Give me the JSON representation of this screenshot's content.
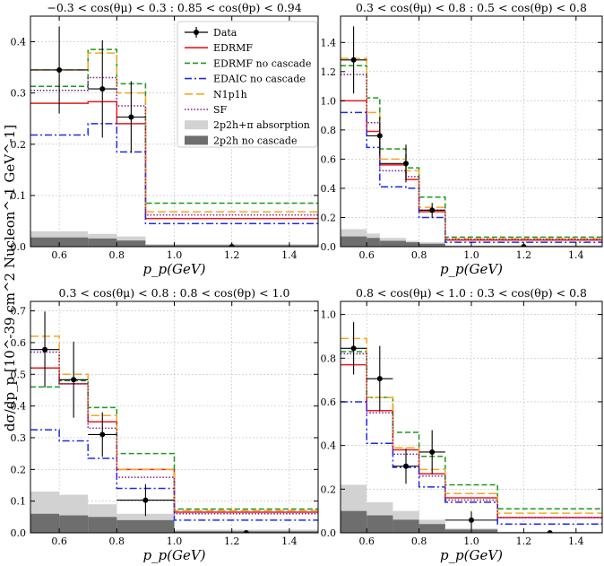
{
  "figure": {
    "ylabel": "dσ/dp_p [10^-39 cm^2 Nucleon^-1 GeV^-1]",
    "colors": {
      "data": "#000000",
      "EDRMF": "#e8191b",
      "EDRMF_nc": "#199a19",
      "EDAIC_nc": "#1f2be6",
      "N1p1h": "#f5a623",
      "SF": "#7a1a8c",
      "abs": "#d2d2d2",
      "noc": "#6e6e6e"
    }
  },
  "legend": {
    "entries": [
      {
        "key": "data",
        "label": "Data"
      },
      {
        "key": "EDRMF",
        "label": "EDRMF"
      },
      {
        "key": "EDRMF_nc",
        "label": "EDRMF no cascade"
      },
      {
        "key": "EDAIC_nc",
        "label": "EDAIC no cascade"
      },
      {
        "key": "N1p1h",
        "label": "N1p1h"
      },
      {
        "key": "SF",
        "label": "SF"
      },
      {
        "key": "abs",
        "label": "2p2h+π absorption"
      },
      {
        "key": "noc",
        "label": "2p2h no cascade"
      }
    ]
  },
  "chart_data": [
    {
      "type": "histogram",
      "title": "−0.3 < cos(θμ) < 0.3 : 0.85 < cos(θp) < 0.94",
      "xlabel": "p_p(GeV)",
      "xlim": [
        0.5,
        1.5
      ],
      "ylim": [
        0,
        0.45
      ],
      "xticks": [
        0.6,
        0.8,
        1.0,
        1.2,
        1.4
      ],
      "yticks": [
        0,
        0.1,
        0.2,
        0.3,
        0.4
      ],
      "tick_labels_x": [
        "0.6",
        "0.8",
        "1.0",
        "1.2",
        "1.4"
      ],
      "tick_labels_y": [
        "0.0",
        "0.1",
        "0.2",
        "0.3",
        "0.4"
      ],
      "edges": [
        0.5,
        0.7,
        0.8,
        0.9,
        1.5
      ],
      "series": [
        {
          "key": "EDRMF",
          "values": [
            0.28,
            0.283,
            0.24,
            0.055
          ]
        },
        {
          "key": "EDRMF_nc",
          "values": [
            0.313,
            0.385,
            0.318,
            0.085
          ]
        },
        {
          "key": "EDAIC_nc",
          "values": [
            0.218,
            0.24,
            0.185,
            0.045
          ]
        },
        {
          "key": "N1p1h",
          "values": [
            0.345,
            0.378,
            0.3,
            0.068
          ]
        },
        {
          "key": "SF",
          "values": [
            0.305,
            0.33,
            0.275,
            0.062
          ]
        }
      ],
      "bands": [
        {
          "key": "abs",
          "values": [
            0.03,
            0.025,
            0.02,
            0.005
          ]
        },
        {
          "key": "noc",
          "values": [
            0.018,
            0.016,
            0.012,
            0.003
          ]
        }
      ],
      "data_points": [
        {
          "x": 0.6,
          "y": 0.345,
          "err": 0.085
        },
        {
          "x": 0.75,
          "y": 0.308,
          "err": 0.095
        },
        {
          "x": 0.85,
          "y": 0.253,
          "err": 0.07
        },
        {
          "x": 1.2,
          "y": 0.0,
          "err": 0.003
        }
      ]
    },
    {
      "type": "histogram",
      "title": "0.3 < cos(θμ) < 0.8 : 0.5 < cos(θp) < 0.8",
      "xlabel": "p_p(GeV)",
      "xlim": [
        0.5,
        1.5
      ],
      "ylim": [
        0,
        1.58
      ],
      "xticks": [
        0.6,
        0.8,
        1.0,
        1.2,
        1.4
      ],
      "yticks": [
        0,
        0.2,
        0.4,
        0.6,
        0.8,
        1.0,
        1.2,
        1.4
      ],
      "tick_labels_x": [
        "0.6",
        "0.8",
        "1.0",
        "1.2",
        "1.4"
      ],
      "tick_labels_y": [
        "0.0",
        "0.2",
        "0.4",
        "0.6",
        "0.8",
        "1.0",
        "1.2",
        "1.4"
      ],
      "edges": [
        0.5,
        0.6,
        0.65,
        0.75,
        0.8,
        0.9,
        1.5
      ],
      "series": [
        {
          "key": "EDRMF",
          "values": [
            1.0,
            0.79,
            0.56,
            0.46,
            0.24,
            0.045
          ]
        },
        {
          "key": "EDRMF_nc",
          "values": [
            1.24,
            1.02,
            0.67,
            0.54,
            0.34,
            0.065
          ]
        },
        {
          "key": "EDAIC_nc",
          "values": [
            0.92,
            0.68,
            0.41,
            0.4,
            0.2,
            0.03
          ]
        },
        {
          "key": "N1p1h",
          "values": [
            1.29,
            0.92,
            0.6,
            0.52,
            0.27,
            0.055
          ]
        },
        {
          "key": "SF",
          "values": [
            1.18,
            0.85,
            0.52,
            0.48,
            0.25,
            0.05
          ]
        }
      ],
      "bands": [
        {
          "key": "abs",
          "values": [
            0.12,
            0.09,
            0.06,
            0.04,
            0.03,
            0.01
          ]
        },
        {
          "key": "noc",
          "values": [
            0.07,
            0.06,
            0.04,
            0.03,
            0.02,
            0.005
          ]
        }
      ],
      "data_points": [
        {
          "x": 0.55,
          "y": 1.28,
          "err": 0.23
        },
        {
          "x": 0.65,
          "y": 0.76,
          "err": 0.13
        },
        {
          "x": 0.75,
          "y": 0.57,
          "err": 0.13
        },
        {
          "x": 0.85,
          "y": 0.25,
          "err": 0.05
        },
        {
          "x": 1.2,
          "y": 0.0,
          "err": 0.005
        }
      ]
    },
    {
      "type": "histogram",
      "title": "0.3 < cos(θμ) < 0.8 : 0.8 < cos(θp) < 1.0",
      "xlabel": "p_p(GeV)",
      "xlim": [
        0.5,
        1.5
      ],
      "ylim": [
        0,
        0.73
      ],
      "xticks": [
        0.6,
        0.8,
        1.0,
        1.2,
        1.4
      ],
      "yticks": [
        0,
        0.1,
        0.2,
        0.3,
        0.4,
        0.5,
        0.6,
        0.7
      ],
      "tick_labels_x": [
        "0.6",
        "0.8",
        "1.0",
        "1.2",
        "1.4"
      ],
      "tick_labels_y": [
        "0.0",
        "0.1",
        "0.2",
        "0.3",
        "0.4",
        "0.5",
        "0.6",
        "0.7"
      ],
      "edges": [
        0.5,
        0.6,
        0.7,
        0.8,
        1.0,
        1.5
      ],
      "series": [
        {
          "key": "EDRMF",
          "values": [
            0.52,
            0.47,
            0.35,
            0.2,
            0.065
          ]
        },
        {
          "key": "EDRMF_nc",
          "values": [
            0.46,
            0.48,
            0.395,
            0.25,
            0.075
          ]
        },
        {
          "key": "EDAIC_nc",
          "values": [
            0.325,
            0.29,
            0.235,
            0.14,
            0.04
          ]
        },
        {
          "key": "N1p1h",
          "values": [
            0.62,
            0.5,
            0.37,
            0.2,
            0.07
          ]
        },
        {
          "key": "SF",
          "values": [
            0.57,
            0.47,
            0.33,
            0.175,
            0.06
          ]
        }
      ],
      "bands": [
        {
          "key": "abs",
          "values": [
            0.13,
            0.12,
            0.09,
            0.06,
            0.01
          ]
        },
        {
          "key": "noc",
          "values": [
            0.06,
            0.055,
            0.05,
            0.04,
            0.005
          ]
        }
      ],
      "data_points": [
        {
          "x": 0.55,
          "y": 0.578,
          "err": 0.12
        },
        {
          "x": 0.65,
          "y": 0.483,
          "err": 0.12
        },
        {
          "x": 0.75,
          "y": 0.31,
          "err": 0.07
        },
        {
          "x": 0.9,
          "y": 0.103,
          "err": 0.05
        },
        {
          "x": 1.25,
          "y": 0.0,
          "err": 0.003
        }
      ]
    },
    {
      "type": "histogram",
      "title": "0.8 < cos(θμ) < 1.0 : 0.3 < cos(θp) < 0.8",
      "xlabel": "p_p(GeV)",
      "xlim": [
        0.5,
        1.5
      ],
      "ylim": [
        0,
        1.06
      ],
      "xticks": [
        0.6,
        0.8,
        1.0,
        1.2,
        1.4
      ],
      "yticks": [
        0,
        0.2,
        0.4,
        0.6,
        0.8,
        1.0
      ],
      "tick_labels_x": [
        "0.6",
        "0.8",
        "1.0",
        "1.2",
        "1.4"
      ],
      "tick_labels_y": [
        "0.0",
        "0.2",
        "0.4",
        "0.6",
        "0.8",
        "1.0"
      ],
      "edges": [
        0.5,
        0.6,
        0.7,
        0.8,
        0.9,
        1.1,
        1.5
      ],
      "series": [
        {
          "key": "EDRMF",
          "values": [
            0.77,
            0.56,
            0.38,
            0.27,
            0.16,
            0.07
          ]
        },
        {
          "key": "EDRMF_nc",
          "values": [
            0.83,
            0.62,
            0.46,
            0.35,
            0.22,
            0.11
          ]
        },
        {
          "key": "EDAIC_nc",
          "values": [
            0.6,
            0.41,
            0.3,
            0.21,
            0.14,
            0.04
          ]
        },
        {
          "key": "N1p1h",
          "values": [
            0.89,
            0.62,
            0.39,
            0.29,
            0.18,
            0.09
          ]
        },
        {
          "key": "SF",
          "values": [
            0.82,
            0.55,
            0.36,
            0.26,
            0.15,
            0.07
          ]
        }
      ],
      "bands": [
        {
          "key": "abs",
          "values": [
            0.22,
            0.14,
            0.1,
            0.06,
            0.02,
            0.005
          ]
        },
        {
          "key": "noc",
          "values": [
            0.1,
            0.08,
            0.06,
            0.04,
            0.015,
            0.003
          ]
        }
      ],
      "data_points": [
        {
          "x": 0.55,
          "y": 0.845,
          "err": 0.12
        },
        {
          "x": 0.65,
          "y": 0.706,
          "err": 0.15
        },
        {
          "x": 0.75,
          "y": 0.305,
          "err": 0.08
        },
        {
          "x": 0.85,
          "y": 0.37,
          "err": 0.1
        },
        {
          "x": 1.0,
          "y": 0.058,
          "err": 0.04
        },
        {
          "x": 1.3,
          "y": 0.0,
          "err": 0.003
        }
      ]
    }
  ]
}
